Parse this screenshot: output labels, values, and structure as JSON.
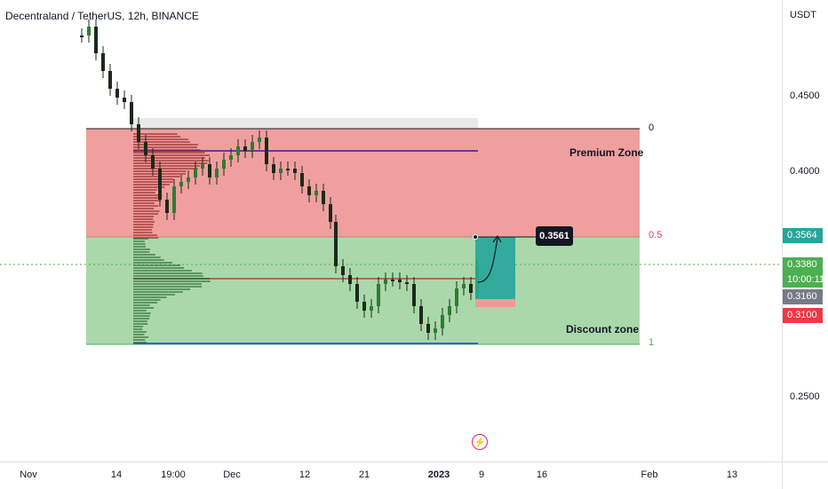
{
  "symbol": {
    "title": "Decentraland / TetherUS, 12h, BINANCE"
  },
  "price_axis": {
    "currency": "USDT",
    "ticks": [
      "0.4500",
      "0.4000",
      "0.2500"
    ],
    "tags": [
      {
        "label": "0.3564",
        "color": "#26a69a"
      },
      {
        "label": "0.3380",
        "color": "#4caf50"
      },
      {
        "label": "10:00:11",
        "color": "#4caf50"
      },
      {
        "label": "0.3160",
        "color": "#787b86"
      },
      {
        "label": "0.3100",
        "color": "#f23645"
      }
    ]
  },
  "time_axis": {
    "ticks": [
      {
        "label": "Nov",
        "bold": false
      },
      {
        "label": "14",
        "bold": false
      },
      {
        "label": "19:00",
        "bold": false
      },
      {
        "label": "Dec",
        "bold": false
      },
      {
        "label": "12",
        "bold": false
      },
      {
        "label": "21",
        "bold": false
      },
      {
        "label": "2023",
        "bold": true
      },
      {
        "label": "9",
        "bold": false
      },
      {
        "label": "16",
        "bold": false
      },
      {
        "label": "Feb",
        "bold": false
      },
      {
        "label": "13",
        "bold": false
      }
    ]
  },
  "zones": {
    "premium_label": "Premium Zone",
    "discount_label": "Discount zone",
    "premium_color": "#ef9a9a",
    "discount_color": "#a5d6a7"
  },
  "fib_levels": [
    {
      "label": "0",
      "color": "#131722"
    },
    {
      "label": "0.5",
      "color": "#f23645"
    },
    {
      "label": "1",
      "color": "#4caf50"
    }
  ],
  "target": {
    "label": "0.3561"
  },
  "colors": {
    "up": "#089981",
    "down": "#131722",
    "candle_body": "#1e2a1e"
  }
}
